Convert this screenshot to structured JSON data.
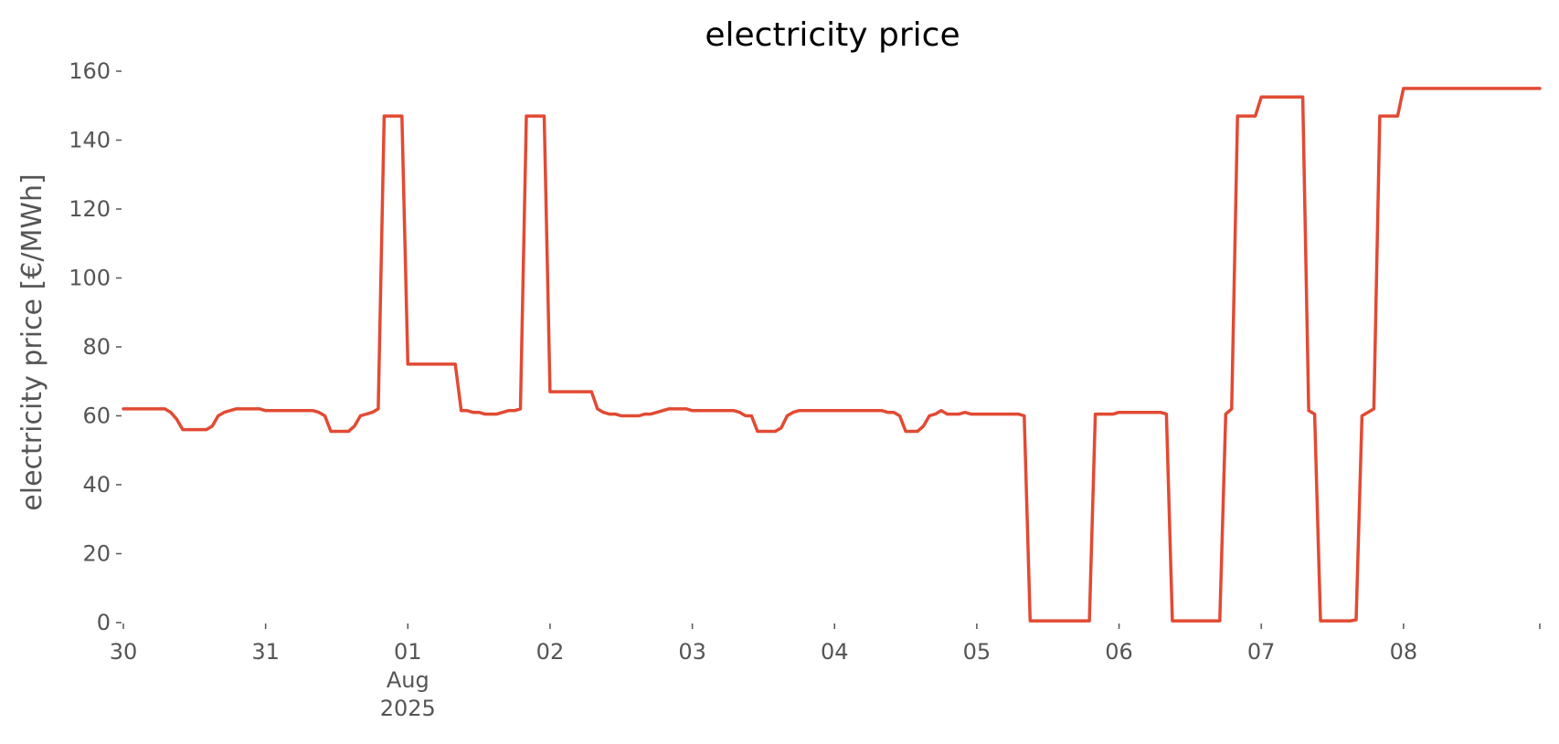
{
  "chart_data": {
    "type": "line",
    "title": "electricity price",
    "xlabel": "",
    "ylabel": "electricity price [€/MWh]",
    "grid": false,
    "legend": "none",
    "ylim": [
      0,
      160
    ],
    "xlim": [
      "2025-07-30 00:00",
      "2025-08-08 23:00"
    ],
    "yticks": [
      0,
      20,
      40,
      60,
      80,
      100,
      120,
      140,
      160
    ],
    "xticks": [
      {
        "x": "2025-07-30 00:00",
        "label": "30",
        "sublabel": ""
      },
      {
        "x": "2025-07-31 00:00",
        "label": "31",
        "sublabel": ""
      },
      {
        "x": "2025-08-01 00:00",
        "label": "01",
        "sublabel": "Aug\n2025"
      },
      {
        "x": "2025-08-02 00:00",
        "label": "02",
        "sublabel": ""
      },
      {
        "x": "2025-08-03 00:00",
        "label": "03",
        "sublabel": ""
      },
      {
        "x": "2025-08-04 00:00",
        "label": "04",
        "sublabel": ""
      },
      {
        "x": "2025-08-05 00:00",
        "label": "05",
        "sublabel": ""
      },
      {
        "x": "2025-08-06 00:00",
        "label": "06",
        "sublabel": ""
      },
      {
        "x": "2025-08-07 00:00",
        "label": "07",
        "sublabel": ""
      },
      {
        "x": "2025-08-08 00:00",
        "label": "08",
        "sublabel": ""
      },
      {
        "x": "2025-08-08 23:00",
        "label": "",
        "sublabel": ""
      }
    ],
    "series": [
      {
        "name": "",
        "color": "#E24A33",
        "points": [
          [
            "2025-07-30 00:00",
            62
          ],
          [
            "2025-07-30 07:00",
            62
          ],
          [
            "2025-07-30 08:00",
            61
          ],
          [
            "2025-07-30 09:00",
            59
          ],
          [
            "2025-07-30 10:00",
            56
          ],
          [
            "2025-07-30 14:00",
            56
          ],
          [
            "2025-07-30 15:00",
            57
          ],
          [
            "2025-07-30 16:00",
            60
          ],
          [
            "2025-07-30 17:00",
            61
          ],
          [
            "2025-07-30 19:00",
            62
          ],
          [
            "2025-07-30 23:00",
            62
          ],
          [
            "2025-07-31 00:00",
            61.5
          ],
          [
            "2025-07-31 08:00",
            61.5
          ],
          [
            "2025-07-31 09:00",
            61
          ],
          [
            "2025-07-31 10:00",
            60
          ],
          [
            "2025-07-31 11:00",
            55.5
          ],
          [
            "2025-07-31 14:00",
            55.5
          ],
          [
            "2025-07-31 15:00",
            57
          ],
          [
            "2025-07-31 16:00",
            60
          ],
          [
            "2025-07-31 18:00",
            61
          ],
          [
            "2025-07-31 19:00",
            62
          ],
          [
            "2025-07-31 20:00",
            147
          ],
          [
            "2025-07-31 23:00",
            147
          ],
          [
            "2025-08-01 00:00",
            75
          ],
          [
            "2025-08-01 08:00",
            75
          ],
          [
            "2025-08-01 09:00",
            61.5
          ],
          [
            "2025-08-01 10:00",
            61.5
          ],
          [
            "2025-08-01 11:00",
            61
          ],
          [
            "2025-08-01 12:00",
            61
          ],
          [
            "2025-08-01 13:00",
            60.5
          ],
          [
            "2025-08-01 15:00",
            60.5
          ],
          [
            "2025-08-01 16:00",
            61
          ],
          [
            "2025-08-01 17:00",
            61.5
          ],
          [
            "2025-08-01 18:00",
            61.5
          ],
          [
            "2025-08-01 19:00",
            62
          ],
          [
            "2025-08-01 20:00",
            147
          ],
          [
            "2025-08-01 23:00",
            147
          ],
          [
            "2025-08-02 00:00",
            67
          ],
          [
            "2025-08-02 07:00",
            67
          ],
          [
            "2025-08-02 08:00",
            62
          ],
          [
            "2025-08-02 09:00",
            61
          ],
          [
            "2025-08-02 10:00",
            60.5
          ],
          [
            "2025-08-02 11:00",
            60.5
          ],
          [
            "2025-08-02 12:00",
            60
          ],
          [
            "2025-08-02 15:00",
            60
          ],
          [
            "2025-08-02 16:00",
            60.5
          ],
          [
            "2025-08-02 17:00",
            60.5
          ],
          [
            "2025-08-02 18:00",
            61
          ],
          [
            "2025-08-02 19:00",
            61.5
          ],
          [
            "2025-08-02 20:00",
            62
          ],
          [
            "2025-08-02 23:00",
            62
          ],
          [
            "2025-08-03 00:00",
            61.5
          ],
          [
            "2025-08-03 07:00",
            61.5
          ],
          [
            "2025-08-03 08:00",
            61
          ],
          [
            "2025-08-03 09:00",
            60
          ],
          [
            "2025-08-03 10:00",
            60
          ],
          [
            "2025-08-03 11:00",
            55.5
          ],
          [
            "2025-08-03 14:00",
            55.5
          ],
          [
            "2025-08-03 15:00",
            56.5
          ],
          [
            "2025-08-03 16:00",
            60
          ],
          [
            "2025-08-03 17:00",
            61
          ],
          [
            "2025-08-03 18:00",
            61.5
          ],
          [
            "2025-08-04 00:00",
            61.5
          ],
          [
            "2025-08-04 08:00",
            61.5
          ],
          [
            "2025-08-04 09:00",
            61
          ],
          [
            "2025-08-04 10:00",
            61
          ],
          [
            "2025-08-04 11:00",
            60
          ],
          [
            "2025-08-04 12:00",
            55.5
          ],
          [
            "2025-08-04 14:00",
            55.5
          ],
          [
            "2025-08-04 15:00",
            57
          ],
          [
            "2025-08-04 16:00",
            60
          ],
          [
            "2025-08-04 17:00",
            60.5
          ],
          [
            "2025-08-04 18:00",
            61.5
          ],
          [
            "2025-08-04 19:00",
            60.5
          ],
          [
            "2025-08-04 21:00",
            60.5
          ],
          [
            "2025-08-04 22:00",
            61
          ],
          [
            "2025-08-04 23:00",
            60.5
          ],
          [
            "2025-08-05 00:00",
            60.5
          ],
          [
            "2025-08-05 07:00",
            60.5
          ],
          [
            "2025-08-05 08:00",
            60
          ],
          [
            "2025-08-05 09:00",
            0.5
          ],
          [
            "2025-08-05 19:00",
            0.5
          ],
          [
            "2025-08-05 20:00",
            60.5
          ],
          [
            "2025-08-05 23:00",
            60.5
          ],
          [
            "2025-08-06 00:00",
            61
          ],
          [
            "2025-08-06 06:00",
            61
          ],
          [
            "2025-08-06 07:00",
            61
          ],
          [
            "2025-08-06 08:00",
            60.5
          ],
          [
            "2025-08-06 09:00",
            0.5
          ],
          [
            "2025-08-06 17:00",
            0.5
          ],
          [
            "2025-08-06 18:00",
            60.5
          ],
          [
            "2025-08-06 19:00",
            62
          ],
          [
            "2025-08-06 20:00",
            147
          ],
          [
            "2025-08-06 23:00",
            147
          ],
          [
            "2025-08-07 00:00",
            152.5
          ],
          [
            "2025-08-07 07:00",
            152.5
          ],
          [
            "2025-08-07 08:00",
            61.5
          ],
          [
            "2025-08-07 09:00",
            60.5
          ],
          [
            "2025-08-07 10:00",
            0.5
          ],
          [
            "2025-08-07 15:00",
            0.5
          ],
          [
            "2025-08-07 16:00",
            0.8
          ],
          [
            "2025-08-07 17:00",
            60
          ],
          [
            "2025-08-07 18:00",
            61
          ],
          [
            "2025-08-07 19:00",
            62
          ],
          [
            "2025-08-07 20:00",
            147
          ],
          [
            "2025-08-07 23:00",
            147
          ],
          [
            "2025-08-08 00:00",
            155
          ],
          [
            "2025-08-08 23:00",
            155
          ]
        ]
      }
    ]
  }
}
